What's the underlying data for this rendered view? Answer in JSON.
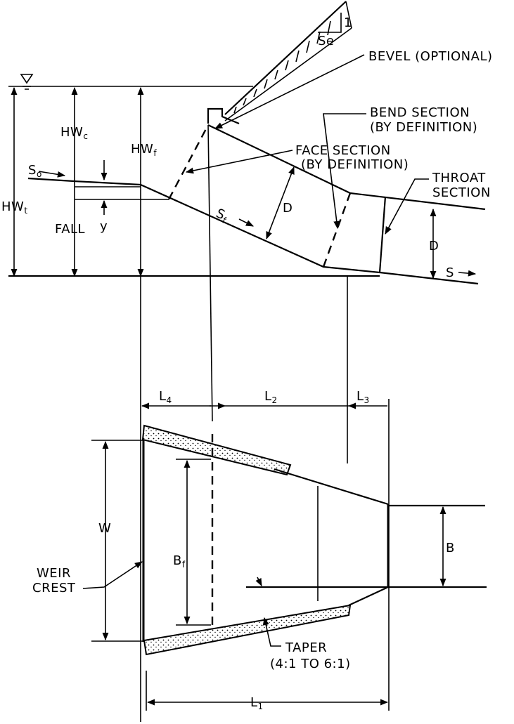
{
  "labels": {
    "se": "Se",
    "se_rise": "1",
    "bevel": "BEVEL (OPTIONAL)",
    "bend_line1": "BEND SECTION",
    "bend_line2": "(BY DEFINITION)",
    "face_line1": "FACE SECTION",
    "face_line2": "(BY DEFINITION)",
    "throat_line1": "THROAT",
    "throat_line2": "SECTION",
    "hw_c": "HW",
    "hw_c_sub": "c",
    "hw_f": "HW",
    "hw_f_sub": "f",
    "hw_t": "HW",
    "hw_t_sub": "t",
    "s_o": "S",
    "s_o_sub": "o",
    "y": "y",
    "fall": "FALL",
    "s_f": "S",
    "s_f_sub": "f",
    "d_face": "D",
    "d_throat": "D",
    "s": "S",
    "l4": "L",
    "l4_sub": "4",
    "l2": "L",
    "l2_sub": "2",
    "l3": "L",
    "l3_sub": "3",
    "w": "W",
    "b_f": "B",
    "b_f_sub": "f",
    "b": "B",
    "weir_line1": "WEIR",
    "weir_line2": "CREST",
    "taper_line1": "TAPER",
    "taper_line2": "(4:1 TO 6:1)",
    "l1": "L",
    "l1_sub": "1"
  }
}
